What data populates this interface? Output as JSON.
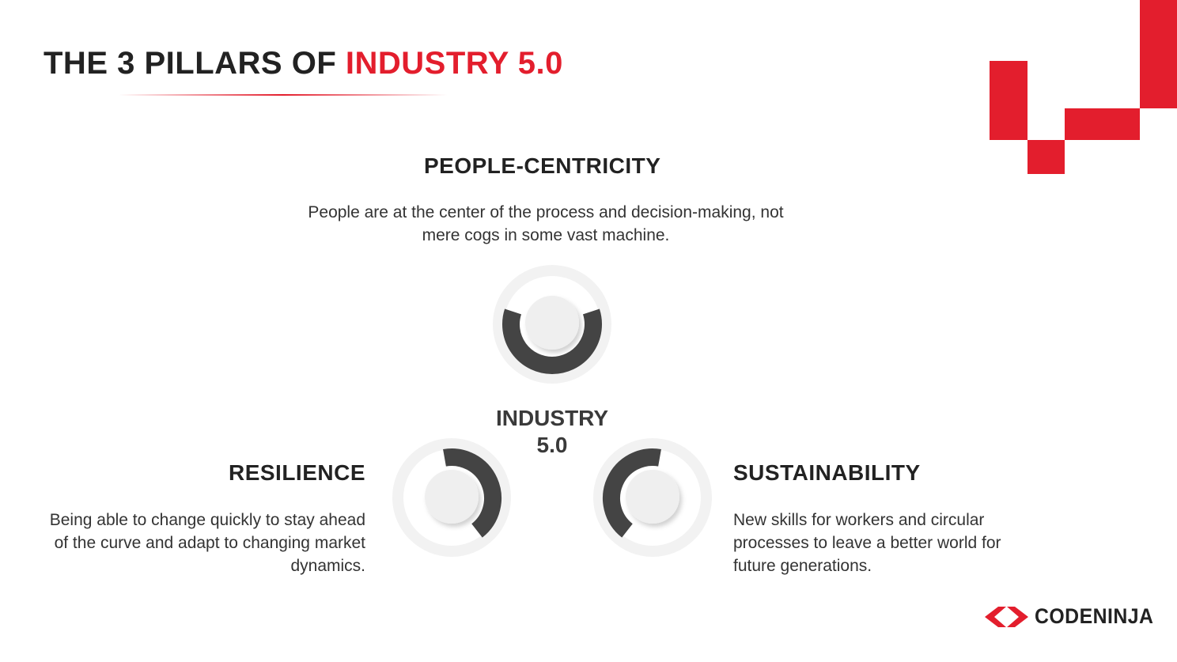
{
  "title": {
    "prefix": "THE 3 PILLARS OF ",
    "accent": "INDUSTRY 5.0"
  },
  "center_label": {
    "line1": "INDUSTRY",
    "line2": "5.0"
  },
  "pillars": [
    {
      "title": "PEOPLE-CENTRICITY",
      "description": "People are at the center of the process and decision-making, not mere cogs in some vast machine."
    },
    {
      "title": "RESILIENCE",
      "description": "Being able to change quickly to stay ahead of the curve and adapt to changing market dynamics."
    },
    {
      "title": "SUSTAINABILITY",
      "description": "New skills for workers and circular processes to leave a better world for future generations."
    }
  ],
  "logo": {
    "text": "CODENINJA"
  },
  "colors": {
    "accent": "#e31e2d",
    "dark_arc": "#444444",
    "ring": "#f2f2f2"
  }
}
